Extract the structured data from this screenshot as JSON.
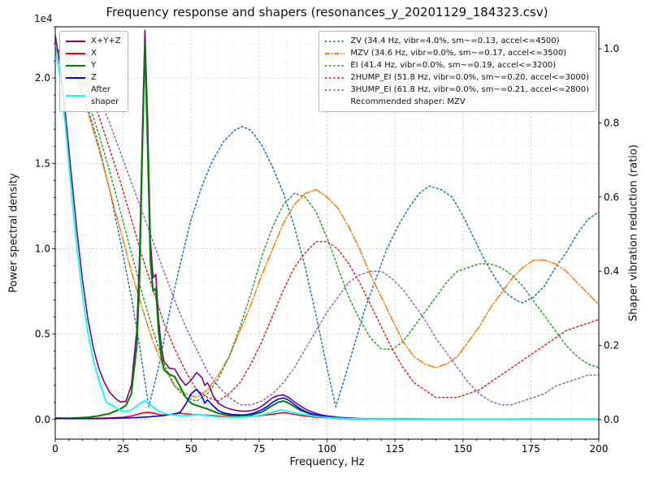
{
  "chart_data": {
    "type": "line",
    "title": "Frequency response and shapers (resonances_y_20201129_184323.csv)",
    "xlabel": "Frequency, Hz",
    "ylabel_left": "Power spectral density",
    "ylabel_right": "Shaper vibration reduction (ratio)",
    "y_left_offset_text": "1e4",
    "recommended_note": "Recommended shaper: MZV",
    "axes": {
      "x": {
        "min": 0,
        "max": 200,
        "major_step": 25,
        "minor_step": 5,
        "ticks": [
          0,
          25,
          50,
          75,
          100,
          125,
          150,
          175,
          200
        ],
        "tick_labels": [
          "0",
          "25",
          "50",
          "75",
          "100",
          "125",
          "150",
          "175",
          "200"
        ]
      },
      "y_left": {
        "min": -1150,
        "max": 23000,
        "major_step": 5000,
        "minor_step": 1000,
        "ticks": [
          0,
          5000,
          10000,
          15000,
          20000
        ],
        "tick_labels": [
          "0.0",
          "0.5",
          "1.0",
          "1.5",
          "2.0"
        ]
      },
      "y_right": {
        "min": -0.0525,
        "max": 1.059,
        "ticks": [
          0,
          0.2,
          0.4,
          0.6,
          0.8,
          1.0
        ],
        "tick_labels": [
          "0.0",
          "0.2",
          "0.4",
          "0.6",
          "0.8",
          "1.0"
        ]
      }
    },
    "series": [
      {
        "name": "zv",
        "label": "ZV (34.4 Hz, vibr=4.0%, sm~=0.13, accel<=4500)",
        "legend": "right",
        "axis": "ratio",
        "color": "#1f77b4",
        "style": "dotted",
        "width": 1.5,
        "x": [
          0,
          4,
          8,
          12,
          16,
          20,
          24,
          28,
          31,
          34.4,
          38,
          42,
          46,
          50,
          54,
          58,
          62,
          66,
          68.8,
          72,
          76,
          80,
          84,
          88,
          92,
          96,
          100,
          103.2,
          106,
          110,
          114,
          118,
          122,
          126,
          130,
          134,
          137.6,
          142,
          146,
          150,
          154,
          158,
          162,
          166,
          170,
          172,
          176,
          180,
          184,
          188,
          192,
          196,
          200
        ],
        "y": [
          1.0,
          0.97,
          0.92,
          0.84,
          0.74,
          0.62,
          0.48,
          0.33,
          0.2,
          0.035,
          0.14,
          0.29,
          0.42,
          0.54,
          0.63,
          0.7,
          0.75,
          0.78,
          0.79,
          0.78,
          0.74,
          0.68,
          0.61,
          0.52,
          0.41,
          0.28,
          0.14,
          0.035,
          0.1,
          0.2,
          0.3,
          0.38,
          0.46,
          0.52,
          0.57,
          0.61,
          0.63,
          0.62,
          0.6,
          0.55,
          0.49,
          0.43,
          0.38,
          0.34,
          0.32,
          0.315,
          0.33,
          0.36,
          0.41,
          0.45,
          0.5,
          0.54,
          0.56
        ]
      },
      {
        "name": "mzv",
        "label": "MZV (34.6 Hz, vibr=0.0%, sm~=0.17, accel<=3500)",
        "legend": "right",
        "axis": "ratio",
        "color": "#ff7f0e",
        "style": "dashdot",
        "width": 1.6,
        "x": [
          0,
          4,
          8,
          12,
          16,
          20,
          24,
          28,
          32,
          36,
          40,
          44,
          48,
          52,
          56,
          60,
          64,
          68,
          72,
          76,
          80,
          84,
          88,
          92,
          96,
          100,
          104,
          108,
          112,
          116,
          120,
          124,
          128,
          132,
          136,
          140,
          144,
          148,
          152,
          156,
          160,
          164,
          168,
          172,
          176,
          180,
          184,
          188,
          192,
          196,
          200
        ],
        "y": [
          1.0,
          0.97,
          0.91,
          0.83,
          0.73,
          0.62,
          0.51,
          0.4,
          0.3,
          0.21,
          0.14,
          0.09,
          0.07,
          0.06,
          0.08,
          0.12,
          0.17,
          0.24,
          0.31,
          0.39,
          0.46,
          0.53,
          0.58,
          0.61,
          0.62,
          0.6,
          0.57,
          0.52,
          0.46,
          0.39,
          0.33,
          0.27,
          0.21,
          0.17,
          0.15,
          0.14,
          0.15,
          0.17,
          0.21,
          0.25,
          0.3,
          0.34,
          0.38,
          0.41,
          0.43,
          0.43,
          0.42,
          0.4,
          0.37,
          0.34,
          0.31
        ]
      },
      {
        "name": "ei",
        "label": "EI (41.4 Hz, vibr=0.0%, sm~=0.19, accel<=3200)",
        "legend": "right",
        "axis": "ratio",
        "color": "#2ca02c",
        "style": "dotted",
        "width": 1.5,
        "x": [
          0,
          4,
          8,
          12,
          16,
          20,
          24,
          28,
          32,
          36,
          40,
          44,
          48,
          52,
          56,
          60,
          64,
          68,
          72,
          76,
          80,
          84,
          88,
          92,
          96,
          100,
          104,
          108,
          112,
          116,
          120,
          124,
          128,
          132,
          136,
          140,
          144,
          148,
          152,
          156,
          160,
          164,
          168,
          172,
          176,
          180,
          184,
          188,
          192,
          196,
          200
        ],
        "y": [
          1.0,
          0.98,
          0.93,
          0.86,
          0.77,
          0.67,
          0.56,
          0.45,
          0.34,
          0.24,
          0.15,
          0.09,
          0.06,
          0.05,
          0.07,
          0.11,
          0.17,
          0.25,
          0.34,
          0.44,
          0.52,
          0.58,
          0.61,
          0.6,
          0.56,
          0.49,
          0.41,
          0.33,
          0.27,
          0.22,
          0.19,
          0.19,
          0.21,
          0.25,
          0.29,
          0.33,
          0.37,
          0.4,
          0.41,
          0.42,
          0.42,
          0.41,
          0.39,
          0.36,
          0.32,
          0.28,
          0.24,
          0.2,
          0.17,
          0.15,
          0.14
        ]
      },
      {
        "name": "two_hump_ei",
        "label": "2HUMP_EI (51.8 Hz, vibr=0.0%, sm~=0.20, accel<=3000)",
        "legend": "right",
        "axis": "ratio",
        "color": "#d62728",
        "style": "dotted",
        "width": 1.5,
        "x": [
          0,
          4,
          8,
          12,
          16,
          20,
          24,
          28,
          32,
          36,
          40,
          44,
          48,
          52,
          56,
          60,
          64,
          68,
          72,
          76,
          80,
          84,
          88,
          92,
          96,
          100,
          104,
          108,
          112,
          116,
          120,
          124,
          128,
          132,
          136,
          140,
          144,
          148,
          152,
          156,
          160,
          164,
          168,
          172,
          176,
          180,
          184,
          188,
          192,
          196,
          200
        ],
        "y": [
          1.0,
          0.98,
          0.95,
          0.89,
          0.82,
          0.73,
          0.64,
          0.54,
          0.44,
          0.35,
          0.26,
          0.19,
          0.13,
          0.08,
          0.06,
          0.05,
          0.07,
          0.1,
          0.15,
          0.21,
          0.28,
          0.35,
          0.41,
          0.45,
          0.48,
          0.48,
          0.46,
          0.42,
          0.37,
          0.31,
          0.25,
          0.19,
          0.14,
          0.1,
          0.08,
          0.06,
          0.06,
          0.06,
          0.07,
          0.08,
          0.1,
          0.12,
          0.14,
          0.16,
          0.18,
          0.2,
          0.22,
          0.24,
          0.25,
          0.26,
          0.27
        ]
      },
      {
        "name": "three_hump_ei",
        "label": "3HUMP_EI (61.8 Hz, vibr=0.0%, sm~=0.21, accel<=2800)",
        "legend": "right",
        "axis": "ratio",
        "color": "#9467bd",
        "style": "dotted",
        "width": 1.5,
        "x": [
          0,
          4,
          8,
          12,
          16,
          20,
          24,
          28,
          32,
          36,
          40,
          44,
          48,
          52,
          56,
          60,
          64,
          68,
          72,
          76,
          80,
          84,
          88,
          92,
          96,
          100,
          104,
          108,
          112,
          116,
          120,
          124,
          128,
          132,
          136,
          140,
          144,
          148,
          152,
          156,
          160,
          164,
          168,
          172,
          176,
          180,
          184,
          188,
          192,
          196,
          200
        ],
        "y": [
          1.0,
          0.99,
          0.96,
          0.92,
          0.87,
          0.8,
          0.72,
          0.64,
          0.56,
          0.48,
          0.4,
          0.32,
          0.25,
          0.19,
          0.13,
          0.09,
          0.06,
          0.04,
          0.04,
          0.05,
          0.07,
          0.1,
          0.14,
          0.19,
          0.24,
          0.29,
          0.33,
          0.37,
          0.39,
          0.4,
          0.4,
          0.38,
          0.35,
          0.31,
          0.27,
          0.22,
          0.18,
          0.14,
          0.1,
          0.07,
          0.05,
          0.04,
          0.04,
          0.05,
          0.06,
          0.07,
          0.09,
          0.1,
          0.11,
          0.12,
          0.12
        ]
      },
      {
        "name": "sum_xyz",
        "label": "X+Y+Z",
        "legend": "left",
        "axis": "psd",
        "color": "#800080",
        "style": "solid",
        "width": 1.6,
        "x": [
          0,
          2,
          4,
          6,
          8,
          10,
          12,
          14,
          16,
          18,
          20,
          22,
          24,
          26,
          28,
          30,
          31,
          32,
          33,
          34,
          35,
          36,
          37,
          38,
          39,
          40,
          42,
          44,
          46,
          48,
          50,
          52,
          54,
          55,
          56,
          57,
          58,
          60,
          62,
          64,
          66,
          68,
          70,
          72,
          74,
          76,
          78,
          80,
          82,
          84,
          86,
          88,
          90,
          92,
          94,
          96,
          98,
          100,
          104,
          108,
          112,
          116,
          120,
          130,
          140,
          160,
          180,
          200
        ],
        "y": [
          22500,
          20500,
          17500,
          14200,
          11000,
          8200,
          5900,
          4200,
          3000,
          2200,
          1600,
          1250,
          1020,
          1060,
          2000,
          5200,
          9500,
          16500,
          22800,
          17500,
          10500,
          8300,
          8500,
          5900,
          4300,
          3400,
          3000,
          2950,
          2400,
          2000,
          2300,
          2750,
          2450,
          2000,
          2150,
          1850,
          1400,
          950,
          760,
          630,
          550,
          500,
          480,
          520,
          600,
          780,
          1020,
          1280,
          1400,
          1430,
          1280,
          1030,
          810,
          620,
          470,
          360,
          270,
          210,
          130,
          90,
          60,
          45,
          38,
          28,
          22,
          16,
          12,
          10
        ]
      },
      {
        "name": "x_axis_psd",
        "label": "X",
        "legend": "left",
        "axis": "psd",
        "color": "#ff0000",
        "style": "solid",
        "width": 1.6,
        "x": [
          0,
          5,
          10,
          15,
          20,
          25,
          28,
          30,
          32,
          34,
          36,
          38,
          40,
          42,
          44,
          46,
          48,
          50,
          52,
          55,
          58,
          60,
          65,
          70,
          75,
          80,
          82,
          84,
          86,
          88,
          90,
          95,
          100,
          110,
          120,
          140,
          160,
          180,
          200
        ],
        "y": [
          90,
          70,
          60,
          70,
          90,
          130,
          200,
          290,
          380,
          420,
          380,
          300,
          250,
          280,
          330,
          360,
          330,
          300,
          280,
          260,
          230,
          200,
          165,
          160,
          210,
          310,
          360,
          400,
          360,
          300,
          240,
          150,
          100,
          50,
          35,
          22,
          15,
          12,
          10
        ]
      },
      {
        "name": "y_axis_psd",
        "label": "Y",
        "legend": "left",
        "axis": "psd",
        "color": "#008000",
        "style": "solid",
        "width": 2.0,
        "x": [
          0,
          4,
          8,
          12,
          16,
          20,
          24,
          26,
          28,
          30,
          31,
          32,
          33,
          34,
          35,
          36,
          37,
          38,
          39,
          40,
          42,
          44,
          46,
          48,
          50,
          52,
          54,
          56,
          58,
          60,
          64,
          68,
          72,
          76,
          80,
          82,
          84,
          86,
          88,
          90,
          94,
          98,
          102,
          106,
          110,
          120,
          140,
          160,
          180,
          200
        ],
        "y": [
          60,
          70,
          90,
          130,
          210,
          350,
          620,
          820,
          1500,
          4300,
          8200,
          15500,
          22000,
          16000,
          9300,
          7500,
          7700,
          5200,
          3700,
          2900,
          2650,
          2500,
          1900,
          1300,
          950,
          820,
          720,
          620,
          480,
          360,
          260,
          215,
          265,
          430,
          830,
          1010,
          1080,
          950,
          750,
          560,
          310,
          160,
          90,
          55,
          38,
          25,
          18,
          12,
          10,
          10
        ]
      },
      {
        "name": "z_axis_psd",
        "label": "Z",
        "legend": "left",
        "axis": "psd",
        "color": "#0000ff",
        "style": "solid",
        "width": 1.6,
        "x": [
          0,
          5,
          10,
          15,
          20,
          25,
          30,
          35,
          40,
          44,
          46,
          48,
          50,
          52,
          54,
          55,
          56,
          58,
          60,
          62,
          65,
          68,
          70,
          72,
          74,
          76,
          78,
          80,
          82,
          84,
          86,
          88,
          90,
          92,
          94,
          98,
          102,
          106,
          110,
          120,
          140,
          160,
          180,
          200
        ],
        "y": [
          70,
          55,
          50,
          55,
          65,
          85,
          115,
          160,
          230,
          330,
          430,
          900,
          1500,
          1780,
          1350,
          950,
          1150,
          820,
          520,
          390,
          290,
          265,
          275,
          330,
          430,
          570,
          760,
          1010,
          1190,
          1260,
          1120,
          880,
          640,
          480,
          350,
          200,
          130,
          85,
          55,
          30,
          20,
          14,
          10,
          10
        ]
      },
      {
        "name": "after_shaper",
        "label": "After\nshaper",
        "legend": "left",
        "axis": "psd",
        "color": "#00ffff",
        "style": "solid",
        "width": 1.8,
        "x": [
          0,
          2,
          4,
          6,
          8,
          10,
          12,
          14,
          16,
          18,
          19,
          20,
          21,
          22,
          24,
          26,
          28,
          30,
          32,
          33,
          34,
          35,
          36,
          38,
          40,
          42,
          44,
          46,
          48,
          50,
          52,
          54,
          56,
          58,
          60,
          64,
          68,
          72,
          76,
          80,
          83,
          86,
          90,
          94,
          98,
          102,
          106,
          110,
          120,
          140,
          160,
          180,
          200
        ],
        "y": [
          21800,
          19800,
          16800,
          13200,
          10000,
          7300,
          5100,
          3500,
          2300,
          1350,
          980,
          900,
          830,
          720,
          520,
          470,
          560,
          790,
          1030,
          1090,
          1010,
          870,
          720,
          500,
          360,
          290,
          255,
          230,
          225,
          250,
          285,
          255,
          225,
          185,
          155,
          135,
          140,
          170,
          260,
          430,
          560,
          480,
          330,
          225,
          145,
          95,
          62,
          45,
          30,
          20,
          15,
          10,
          10
        ]
      }
    ]
  }
}
